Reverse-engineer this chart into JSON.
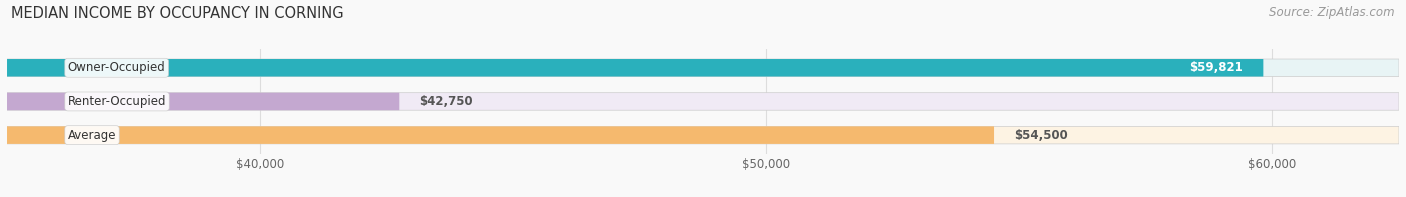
{
  "title": "MEDIAN INCOME BY OCCUPANCY IN CORNING",
  "source": "Source: ZipAtlas.com",
  "categories": [
    "Owner-Occupied",
    "Renter-Occupied",
    "Average"
  ],
  "values": [
    59821,
    42750,
    54500
  ],
  "labels": [
    "$59,821",
    "$42,750",
    "$54,500"
  ],
  "bar_colors": [
    "#2ab0bc",
    "#c4a8d0",
    "#f5b96e"
  ],
  "bar_bg_colors": [
    "#e8f4f5",
    "#f0eaf5",
    "#fdf3e3"
  ],
  "xlim_min": 35000,
  "xlim_max": 62500,
  "xticks": [
    40000,
    50000,
    60000
  ],
  "xtick_labels": [
    "$40,000",
    "$50,000",
    "$60,000"
  ],
  "background_color": "#f9f9f9",
  "title_fontsize": 10.5,
  "source_fontsize": 8.5,
  "label_fontsize": 8.5,
  "bar_height": 0.52
}
